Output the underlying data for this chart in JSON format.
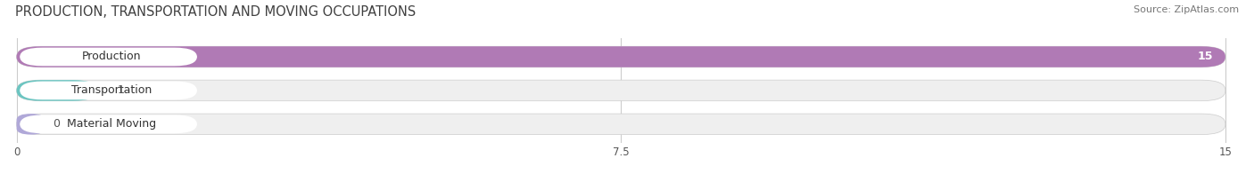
{
  "title": "PRODUCTION, TRANSPORTATION AND MOVING OCCUPATIONS",
  "source": "Source: ZipAtlas.com",
  "categories": [
    "Production",
    "Transportation",
    "Material Moving"
  ],
  "values": [
    15,
    1,
    0
  ],
  "bar_colors": [
    "#b07ab5",
    "#6bc5c1",
    "#b0a8d8"
  ],
  "bar_bg_color": "#efefef",
  "value_labels": [
    "15",
    "1",
    "0"
  ],
  "xlim": [
    0,
    15
  ],
  "xticks": [
    0,
    7.5,
    15
  ],
  "figsize": [
    14.06,
    1.96
  ],
  "dpi": 100,
  "title_fontsize": 10.5,
  "source_fontsize": 8,
  "label_fontsize": 9,
  "value_fontsize": 9
}
